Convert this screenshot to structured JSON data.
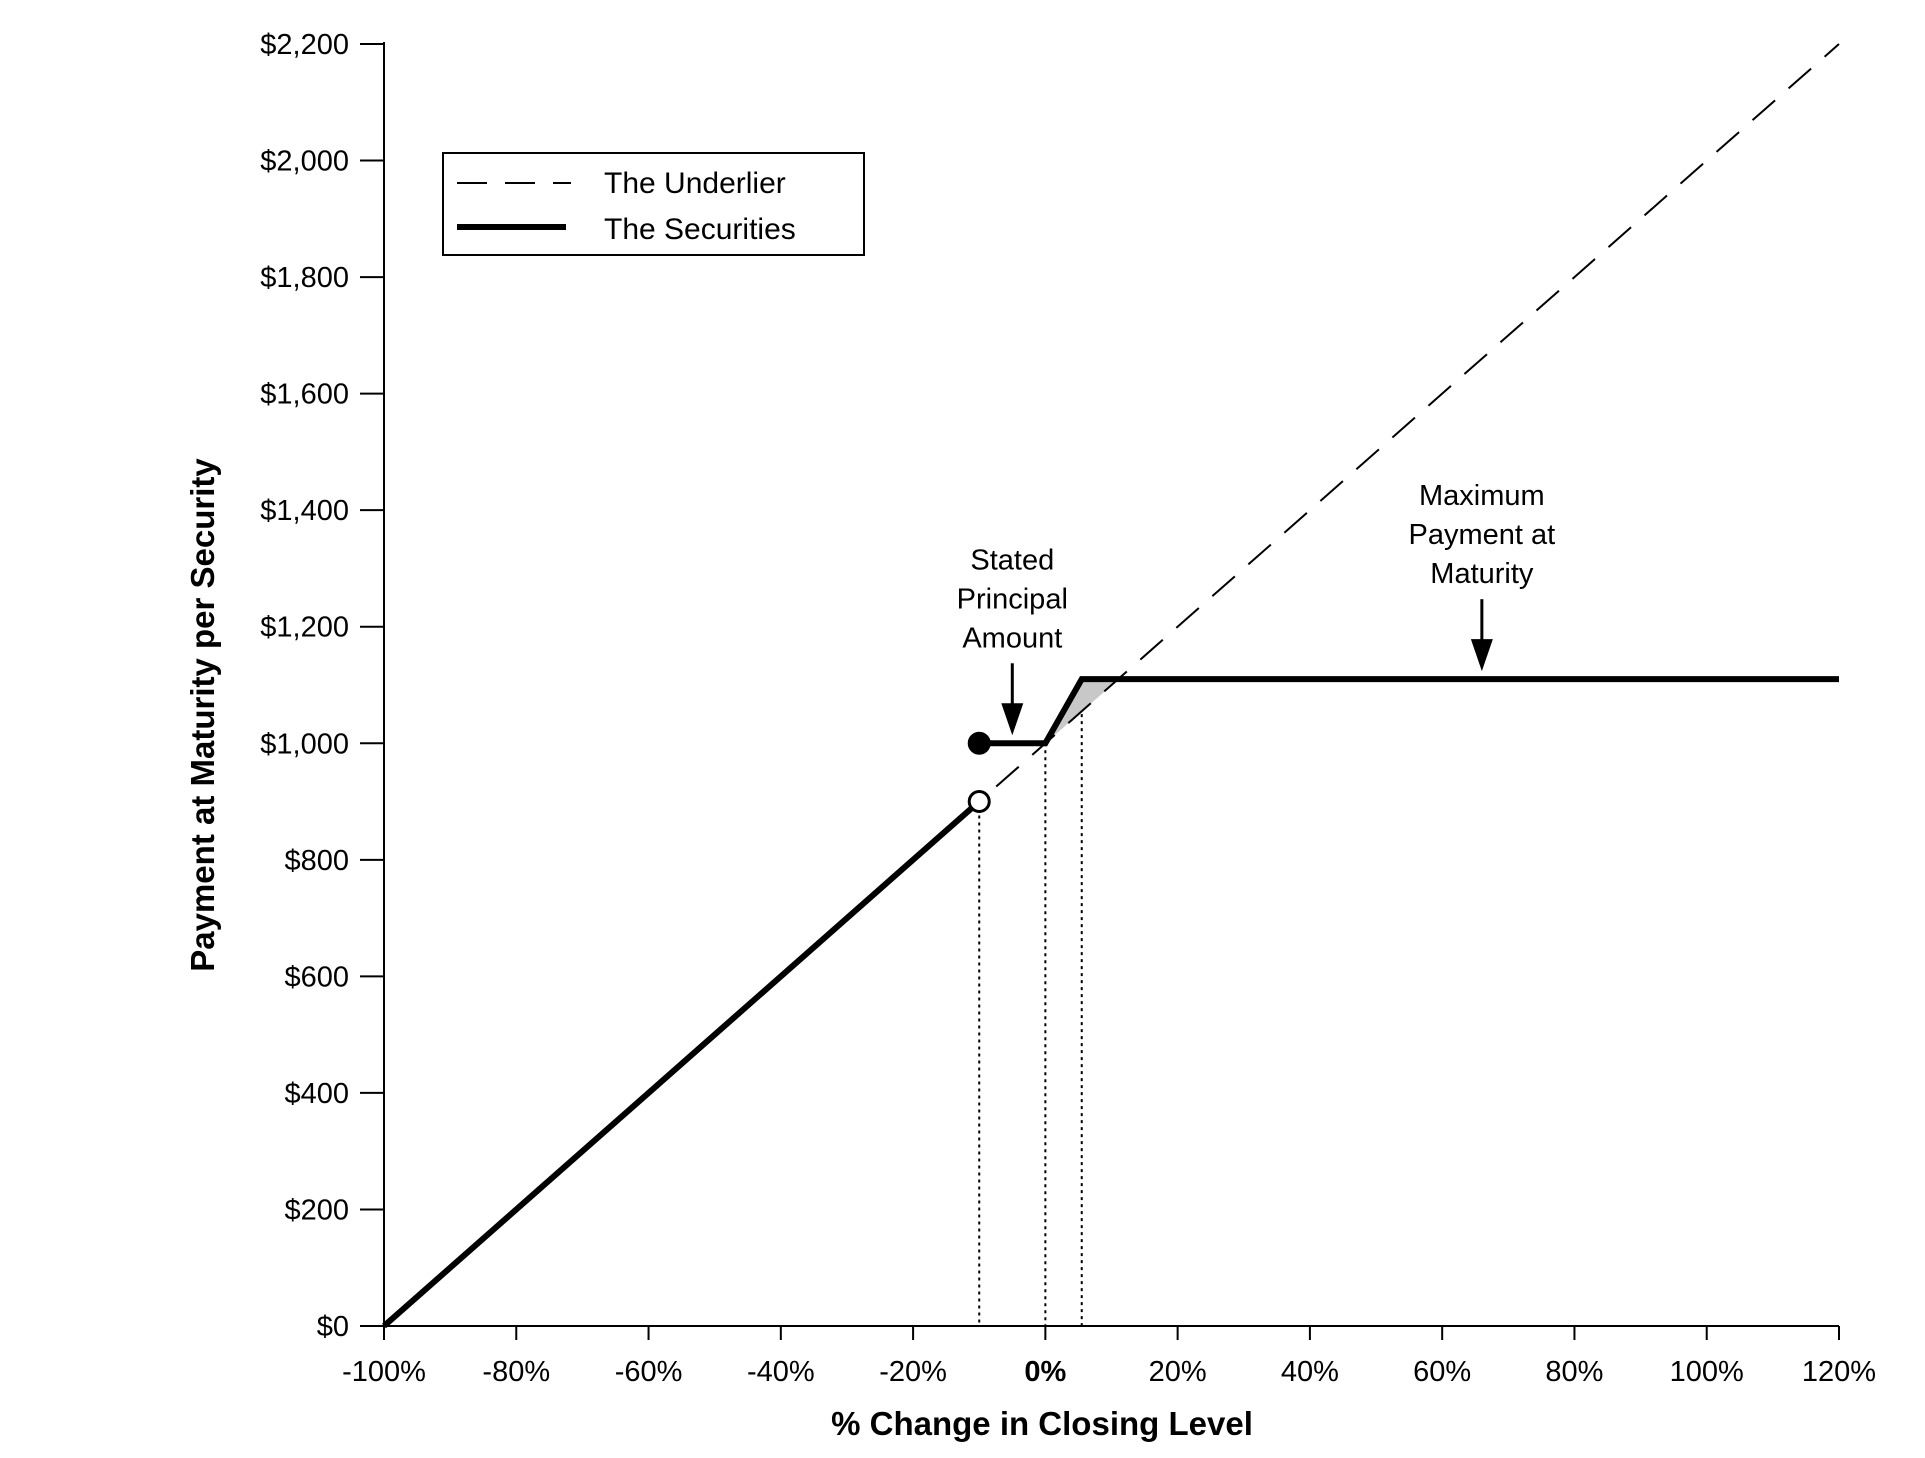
{
  "chart_data": {
    "type": "line",
    "xlabel": "% Change in Closing Level",
    "ylabel": "Payment at Maturity per Security",
    "xlim": [
      -100,
      120
    ],
    "ylim": [
      0,
      2200
    ],
    "x_ticks": [
      -100,
      -80,
      -60,
      -40,
      -20,
      0,
      20,
      40,
      60,
      80,
      100,
      120
    ],
    "x_tick_labels": [
      "-100%",
      "-80%",
      "-60%",
      "-40%",
      "-20%",
      "0%",
      "20%",
      "40%",
      "60%",
      "80%",
      "100%",
      "120%"
    ],
    "y_ticks": [
      0,
      200,
      400,
      600,
      800,
      1000,
      1200,
      1400,
      1600,
      1800,
      2000,
      2200
    ],
    "y_tick_labels": [
      "$0",
      "$200",
      "$400",
      "$600",
      "$800",
      "$1,000",
      "$1,200",
      "$1,400",
      "$1,600",
      "$1,800",
      "$2,000",
      "$2,200"
    ],
    "legend": {
      "position": "top-left",
      "entries": [
        "The Underlier",
        "The Securities"
      ]
    },
    "series": [
      {
        "name": "The Underlier",
        "style": "dashed",
        "x": [
          -100,
          120
        ],
        "y": [
          0,
          2200
        ]
      },
      {
        "name": "The Securities",
        "style": "solid",
        "segments": [
          {
            "x": [
              -100,
              -10
            ],
            "y": [
              0,
              900
            ]
          },
          {
            "x": [
              -10,
              0,
              5.5,
              120
            ],
            "y": [
              1000,
              1000,
              1110,
              1110
            ]
          }
        ]
      }
    ],
    "markers": [
      {
        "x": -10,
        "y": 1000,
        "fill": "filled"
      },
      {
        "x": -10,
        "y": 900,
        "fill": "open"
      }
    ],
    "reference_lines": [
      {
        "x": -10,
        "y_top": 900
      },
      {
        "x": 0,
        "y_top": 1000
      },
      {
        "x": 5.5,
        "y_top": 1110
      }
    ],
    "shaded_region": {
      "x": [
        0,
        5.5,
        11.1
      ],
      "y": [
        1000,
        1110,
        1110
      ]
    },
    "annotations": [
      {
        "lines": [
          "Stated",
          "Principal",
          "Amount"
        ],
        "x": -5,
        "y": 1000
      },
      {
        "lines": [
          "Maximum",
          "Payment at",
          "Maturity"
        ],
        "x": 66,
        "y": 1110
      }
    ],
    "grid": false
  },
  "colors": {
    "line": "#000000",
    "shade": "#c8c8c8",
    "background": "#ffffff"
  }
}
